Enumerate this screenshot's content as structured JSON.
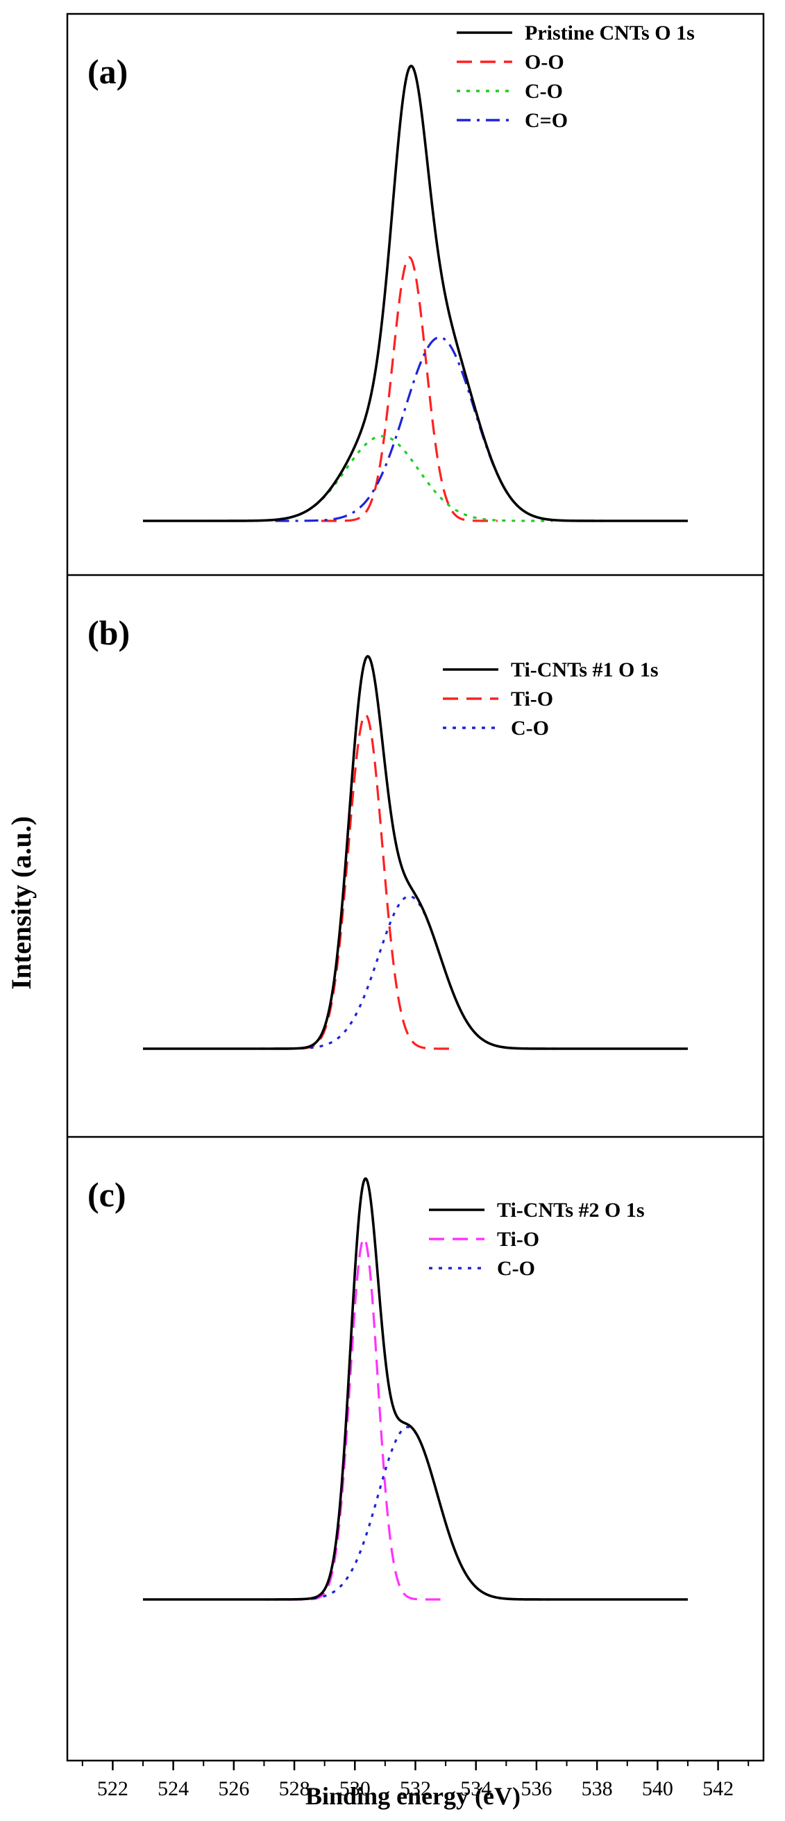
{
  "chart_data": {
    "type": "line",
    "xlabel": "Binding energy (eV)",
    "ylabel": "Intensity (a.u.)",
    "xlim": [
      520.5,
      543.5
    ],
    "xticks": [
      522,
      524,
      526,
      528,
      530,
      532,
      534,
      536,
      538,
      540,
      542
    ],
    "x_range_data": [
      523,
      541
    ],
    "panels": [
      {
        "label": "(a)",
        "ylim": [
          0,
          1.08
        ],
        "series": [
          {
            "name": "Pristine CNTs O 1s",
            "color": "#000000",
            "style": "solid",
            "center": 531.9,
            "sigma": 0.95,
            "amplitude": 1.0,
            "sum": true
          },
          {
            "name": "O-O",
            "color": "#ff2020",
            "style": "dashed",
            "center": 531.8,
            "sigma": 0.55,
            "amplitude": 0.56
          },
          {
            "name": "C-O",
            "color": "#22cc22",
            "style": "dotted",
            "center": 530.9,
            "sigma": 1.2,
            "amplitude": 0.18
          },
          {
            "name": "C=O",
            "color": "#1f24d6",
            "style": "dashdot",
            "center": 532.8,
            "sigma": 1.15,
            "amplitude": 0.39
          }
        ]
      },
      {
        "label": "(b)",
        "ylim": [
          0,
          1.08
        ],
        "series": [
          {
            "name": "Ti-CNTs #1 O 1s",
            "color": "#000000",
            "style": "solid",
            "center": 0,
            "sigma": 0,
            "amplitude": 1.0,
            "sum": true
          },
          {
            "name": "Ti-O",
            "color": "#ff2020",
            "style": "dashed",
            "center": 530.35,
            "sigma": 0.56,
            "amplitude": 0.92
          },
          {
            "name": "C-O",
            "color": "#1f24d6",
            "style": "dotted",
            "center": 531.8,
            "sigma": 1.02,
            "amplitude": 0.42
          }
        ]
      },
      {
        "label": "(c)",
        "ylim": [
          0,
          1.08
        ],
        "series": [
          {
            "name": "Ti-CNTs #2 O 1s",
            "color": "#000000",
            "style": "solid",
            "center": 0,
            "sigma": 0,
            "amplitude": 1.0,
            "sum": true
          },
          {
            "name": "Ti-O",
            "color": "#ff33ff",
            "style": "dashed",
            "center": 530.3,
            "sigma": 0.46,
            "amplitude": 0.9
          },
          {
            "name": "C-O",
            "color": "#1f24d6",
            "style": "dotted",
            "center": 531.75,
            "sigma": 0.98,
            "amplitude": 0.43
          }
        ]
      }
    ]
  }
}
